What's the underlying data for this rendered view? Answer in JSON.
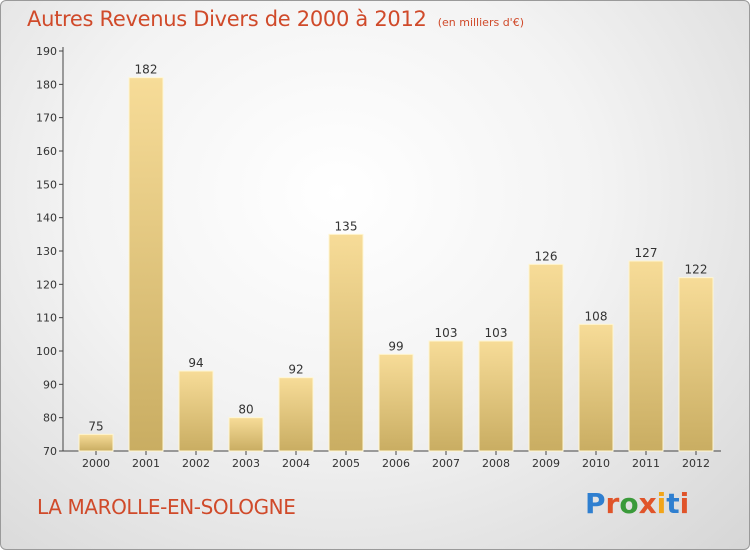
{
  "header": {
    "title": "Autres Revenus Divers de 2000 à 2012",
    "subtitle": "(en milliers d'€)"
  },
  "footer": {
    "place": "LA MAROLLE-EN-SOLOGNE",
    "logo_text": "Proxiti"
  },
  "colors": {
    "title": "#d04a2a",
    "bar_light": "#f7dc98",
    "bar_dark": "#c9ad62",
    "logo_letters": [
      "#2f7fd0",
      "#e0542a",
      "#3a9a3a",
      "#e0542a",
      "#f2a51a",
      "#2f7fd0",
      "#e0542a"
    ]
  },
  "chart_data": {
    "type": "bar",
    "categories": [
      "2000",
      "2001",
      "2002",
      "2003",
      "2004",
      "2005",
      "2006",
      "2007",
      "2008",
      "2009",
      "2010",
      "2011",
      "2012"
    ],
    "values": [
      75,
      182,
      94,
      80,
      92,
      135,
      99,
      103,
      103,
      126,
      108,
      127,
      122
    ],
    "ylim": [
      70,
      190
    ],
    "yticks": [
      70,
      80,
      90,
      100,
      110,
      120,
      130,
      140,
      150,
      160,
      170,
      180,
      190
    ],
    "grid": false
  }
}
